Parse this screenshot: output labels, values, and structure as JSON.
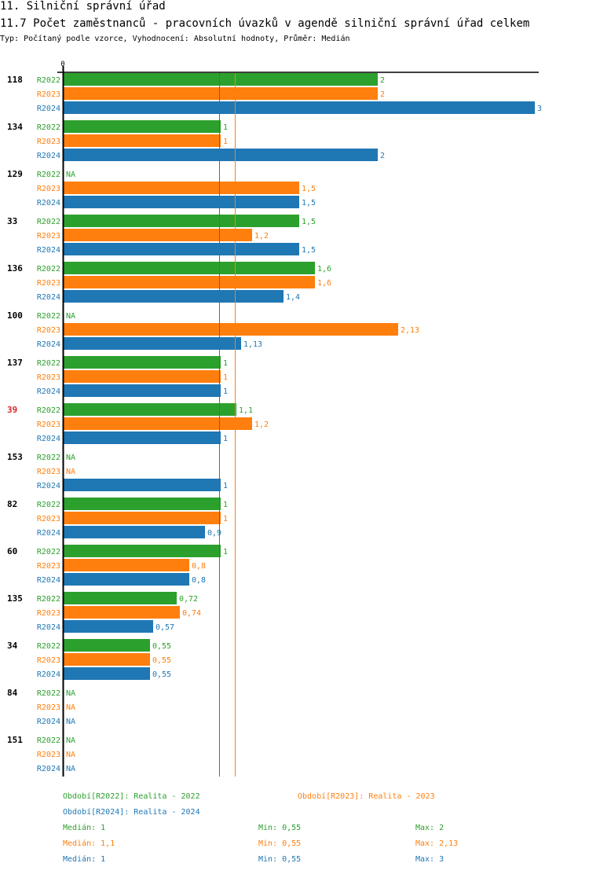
{
  "header": {
    "section_title": "11. Silniční správní úřad",
    "chart_title": "11.7 Počet zaměstnanců - pracovních úvazků v agendě silniční správní úřad celkem",
    "subtitle": "Typ: Počítaný podle vzorce, Vyhodnocení: Absolutní hodnoty, Průměr: Medián"
  },
  "colors": {
    "R2022": "#2ca02c",
    "R2023": "#ff7f0e",
    "R2024": "#1f77b4",
    "highlight_group": "#d62728",
    "axis": "#000000"
  },
  "chart_data": {
    "type": "bar",
    "orientation": "horizontal",
    "title": "11.7 Počet zaměstnanců - pracovních úvazků v agendě silniční správní úřad celkem",
    "x_tick_labels": [
      "0"
    ],
    "xlim": [
      0,
      3.03
    ],
    "series_names": [
      "R2022",
      "R2023",
      "R2024"
    ],
    "highlight_category": "39",
    "categories": [
      "118",
      "134",
      "129",
      "33",
      "136",
      "100",
      "137",
      "39",
      "153",
      "82",
      "60",
      "135",
      "34",
      "84",
      "151"
    ],
    "series": [
      {
        "name": "R2022",
        "values": [
          2,
          1,
          null,
          1.5,
          1.6,
          null,
          1,
          1.1,
          null,
          1,
          1,
          0.72,
          0.55,
          null,
          null
        ],
        "labels": [
          "2",
          "1",
          "NA",
          "1,5",
          "1,6",
          "NA",
          "1",
          "1,1",
          "NA",
          "1",
          "1",
          "0,72",
          "0,55",
          "NA",
          "NA"
        ]
      },
      {
        "name": "R2023",
        "values": [
          2,
          1,
          1.5,
          1.2,
          1.6,
          2.13,
          1,
          1.2,
          null,
          1,
          0.8,
          0.74,
          0.55,
          null,
          null
        ],
        "labels": [
          "2",
          "1",
          "1,5",
          "1,2",
          "1,6",
          "2,13",
          "1",
          "1,2",
          "NA",
          "1",
          "0,8",
          "0,74",
          "0,55",
          "NA",
          "NA"
        ]
      },
      {
        "name": "R2024",
        "values": [
          3,
          2,
          1.5,
          1.5,
          1.4,
          1.13,
          1,
          1,
          1,
          0.9,
          0.8,
          0.57,
          0.55,
          null,
          null
        ],
        "labels": [
          "3",
          "2",
          "1,5",
          "1,5",
          "1,4",
          "1,13",
          "1",
          "1",
          "1",
          "0,9",
          "0,8",
          "0,57",
          "0,55",
          "NA",
          "NA"
        ]
      }
    ],
    "reference_lines": [
      {
        "series": "R2024",
        "type": "median",
        "value": 1
      },
      {
        "series": "R2023",
        "type": "median",
        "value": 1.1
      }
    ]
  },
  "legend": {
    "periods": [
      {
        "series": "R2022",
        "text": "Období[R2022]: Realita - 2022"
      },
      {
        "series": "R2023",
        "text": "Období[R2023]: Realita - 2023"
      },
      {
        "series": "R2024",
        "text": "Období[R2024]: Realita - 2024"
      }
    ],
    "stats": [
      {
        "series": "R2022",
        "median": "Medián: 1",
        "min": "Min: 0,55",
        "max": "Max: 2"
      },
      {
        "series": "R2023",
        "median": "Medián: 1,1",
        "min": "Min: 0,55",
        "max": "Max: 2,13"
      },
      {
        "series": "R2024",
        "median": "Medián: 1",
        "min": "Min: 0,55",
        "max": "Max: 3"
      }
    ]
  }
}
